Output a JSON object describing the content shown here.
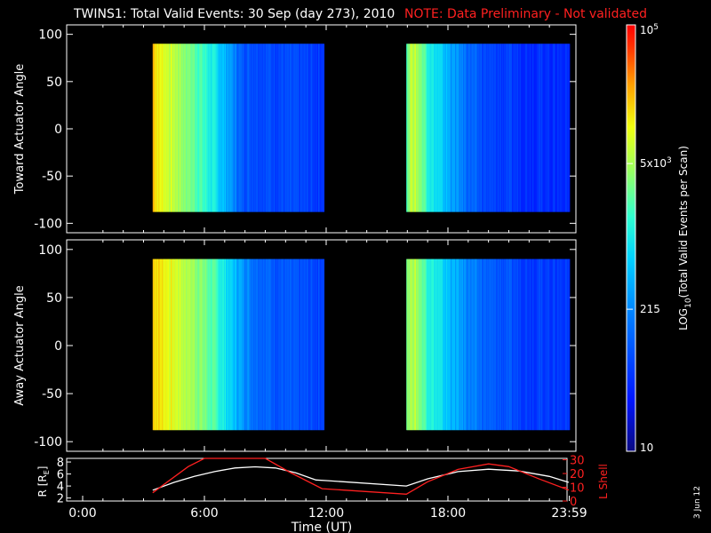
{
  "header": {
    "title": "TWINS1: Total Valid Events: 30 Sep (day 273), 2010",
    "note": "NOTE: Data Preliminary - Not validated"
  },
  "footer": {
    "date_stamp": "3 Jun 12"
  },
  "chart_data": [
    {
      "type": "heatmap",
      "panel": "toward",
      "ylabel": "Toward Actuator Angle",
      "ylim": [
        -110,
        110
      ],
      "yticks": [
        100,
        50,
        0,
        -50,
        -100
      ],
      "xlim_hours": [
        0,
        24
      ],
      "coverage_hours": [
        [
          3.45,
          11.85
        ],
        [
          15.95,
          23.95
        ]
      ],
      "angle_range": [
        -88,
        90
      ],
      "description_values": {
        "segments": [
          {
            "start": 3.45,
            "end": 11.85,
            "profile": [
              [
                3.45,
                4.4
              ],
              [
                3.7,
                4.1
              ],
              [
                4.2,
                3.9
              ],
              [
                5.0,
                3.6
              ],
              [
                5.8,
                3.3
              ],
              [
                6.4,
                3.0
              ],
              [
                7.2,
                2.5
              ],
              [
                7.8,
                2.0
              ],
              [
                9.0,
                1.9
              ],
              [
                10.0,
                1.85
              ],
              [
                11.0,
                1.8
              ],
              [
                11.85,
                1.75
              ]
            ]
          },
          {
            "start": 15.95,
            "end": 23.95,
            "profile": [
              [
                15.95,
                3.4
              ],
              [
                16.2,
                3.9
              ],
              [
                16.6,
                3.6
              ],
              [
                17.2,
                3.0
              ],
              [
                18.0,
                2.6
              ],
              [
                19.0,
                2.1
              ],
              [
                20.0,
                1.8
              ],
              [
                22.0,
                1.7
              ],
              [
                23.95,
                1.65
              ]
            ]
          }
        ]
      }
    },
    {
      "type": "heatmap",
      "panel": "away",
      "ylabel": "Away Actuator Angle",
      "ylim": [
        -110,
        110
      ],
      "yticks": [
        100,
        50,
        0,
        -50,
        -100
      ],
      "xlim_hours": [
        0,
        24
      ],
      "coverage_hours": [
        [
          3.45,
          11.85
        ],
        [
          15.95,
          23.95
        ]
      ],
      "angle_range": [
        -88,
        90
      ],
      "description_values": {
        "segments": [
          {
            "start": 3.45,
            "end": 11.85,
            "profile": [
              [
                3.45,
                4.3
              ],
              [
                4.0,
                4.1
              ],
              [
                5.0,
                3.8
              ],
              [
                6.0,
                3.5
              ],
              [
                6.8,
                3.1
              ],
              [
                7.6,
                2.6
              ],
              [
                8.4,
                2.2
              ],
              [
                9.5,
                2.0
              ],
              [
                10.5,
                1.9
              ],
              [
                11.85,
                1.85
              ]
            ]
          },
          {
            "start": 15.95,
            "end": 23.95,
            "profile": [
              [
                15.95,
                3.6
              ],
              [
                16.3,
                3.8
              ],
              [
                17.0,
                3.2
              ],
              [
                17.8,
                2.8
              ],
              [
                19.0,
                2.3
              ],
              [
                20.0,
                2.0
              ],
              [
                22.0,
                1.8
              ],
              [
                23.95,
                1.75
              ]
            ]
          }
        ]
      }
    },
    {
      "type": "colorbar",
      "label": "LOG10(Total Valid Events per Scan)",
      "label_main": "LOG",
      "label_sub": "10",
      "label_rest": "(Total Valid Events per Scan)",
      "range_log": [
        1,
        5
      ],
      "ticks": [
        {
          "value": 10,
          "label": "10"
        },
        {
          "value": 215,
          "label": "215"
        },
        {
          "value": 5000,
          "label_base": "5x10",
          "label_exp": "3"
        },
        {
          "value": 100000,
          "label_base": "10",
          "label_exp": "5"
        }
      ]
    },
    {
      "type": "line",
      "panel": "orbit",
      "ylabel_left": "R [RE]",
      "ylabel_left_main": "R [R",
      "ylabel_left_sub": "E",
      "ylabel_left_end": "]",
      "ylabel_right": "L Shell",
      "y_left_ticks": [
        2,
        4,
        6,
        8
      ],
      "y_left_lim": [
        1.5,
        8.6
      ],
      "y_right_ticks": [
        0,
        10,
        20,
        30
      ],
      "y_right_lim": [
        0,
        31
      ],
      "xlabel": "Time (UT)",
      "xticks": [
        "0:00",
        "6:00",
        "12:00",
        "18:00",
        "23:59"
      ],
      "series": [
        {
          "axis": "left",
          "color": "#ffffff",
          "x": [
            3.45,
            4.5,
            5.5,
            6.5,
            7.5,
            8.5,
            9.5,
            10.5,
            11.5,
            12.0,
            15.95,
            17.0,
            18.5,
            20.0,
            21.5,
            23.0,
            23.95
          ],
          "y": [
            3.3,
            4.6,
            5.6,
            6.4,
            7.0,
            7.2,
            7.0,
            6.2,
            5.0,
            4.9,
            4.0,
            5.2,
            6.4,
            6.8,
            6.5,
            5.6,
            4.6
          ]
        },
        {
          "axis": "right",
          "color": "#ff2020",
          "x": [
            3.45,
            5.2,
            6.0,
            9.0,
            10.2,
            11.8,
            15.95,
            17.0,
            18.5,
            20.0,
            21.0,
            22.5,
            23.95
          ],
          "y": [
            6,
            25,
            32,
            32,
            21,
            9,
            5,
            14,
            23,
            27,
            25,
            16,
            8
          ]
        }
      ]
    }
  ]
}
